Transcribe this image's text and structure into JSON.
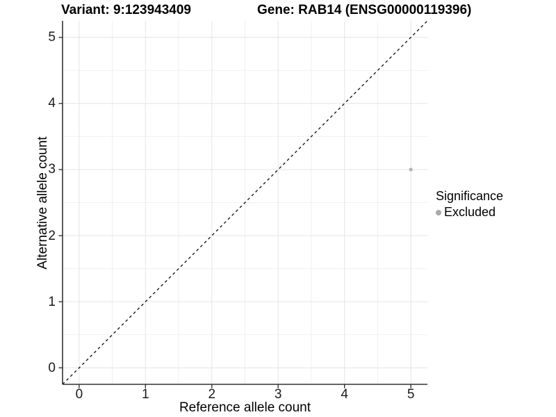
{
  "chart_data": {
    "type": "scatter",
    "title_left": "Variant: 9:123943409",
    "title_right": "Gene: RAB14 (ENSG00000119396)",
    "xlabel": "Reference allele count",
    "ylabel": "Alternative allele count",
    "xlim": [
      -0.25,
      5.25
    ],
    "ylim": [
      -0.25,
      5.25
    ],
    "xticks": [
      0,
      1,
      2,
      3,
      4,
      5
    ],
    "yticks": [
      0,
      1,
      2,
      3,
      4,
      5
    ],
    "minor_xticks": [
      0.5,
      1.5,
      2.5,
      3.5,
      4.5
    ],
    "minor_yticks": [
      0.5,
      1.5,
      2.5,
      3.5,
      4.5
    ],
    "grid": true,
    "legend": {
      "title": "Significance",
      "position": "right",
      "entries": [
        {
          "label": "Excluded",
          "color": "#a9a9a9"
        }
      ]
    },
    "series": [
      {
        "name": "Excluded",
        "color": "#b2b2b2",
        "points": [
          {
            "x": 5,
            "y": 3
          }
        ]
      }
    ],
    "reference_line": {
      "type": "identity",
      "style": "dashed",
      "color": "#1a1a1a"
    },
    "style": {
      "background": "#ffffff",
      "grid_major": "#e4e4e4",
      "grid_minor": "#f0f0f0",
      "axis_line": "#333333",
      "tick_mark": "#333333",
      "text": "#000000"
    }
  }
}
